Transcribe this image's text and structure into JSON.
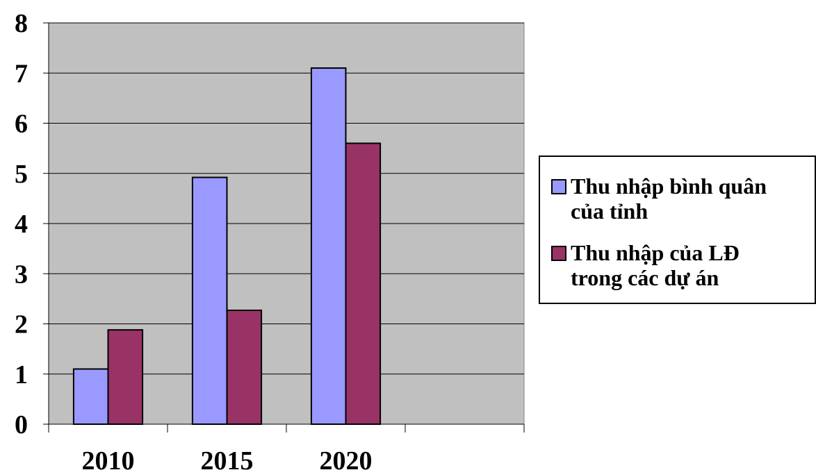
{
  "chart_data": {
    "type": "bar",
    "title": "",
    "xlabel": "",
    "ylabel": "",
    "categories": [
      "2010",
      "2015",
      "2020"
    ],
    "x_slots": 4,
    "series": [
      {
        "name": "Thu nhập bình quân\ncủa tỉnh",
        "values": [
          1.1,
          4.92,
          7.1
        ],
        "color": "#9999ff"
      },
      {
        "name": "Thu nhập của LĐ\ntrong các dự án",
        "values": [
          1.88,
          2.27,
          5.6
        ],
        "color": "#993366"
      }
    ],
    "ylim": [
      0,
      8
    ],
    "yticks": [
      "0",
      "1",
      "2",
      "3",
      "4",
      "5",
      "6",
      "7",
      "8"
    ],
    "grid": true,
    "plot_background": "#c0c0c0",
    "legend_position": "right"
  }
}
